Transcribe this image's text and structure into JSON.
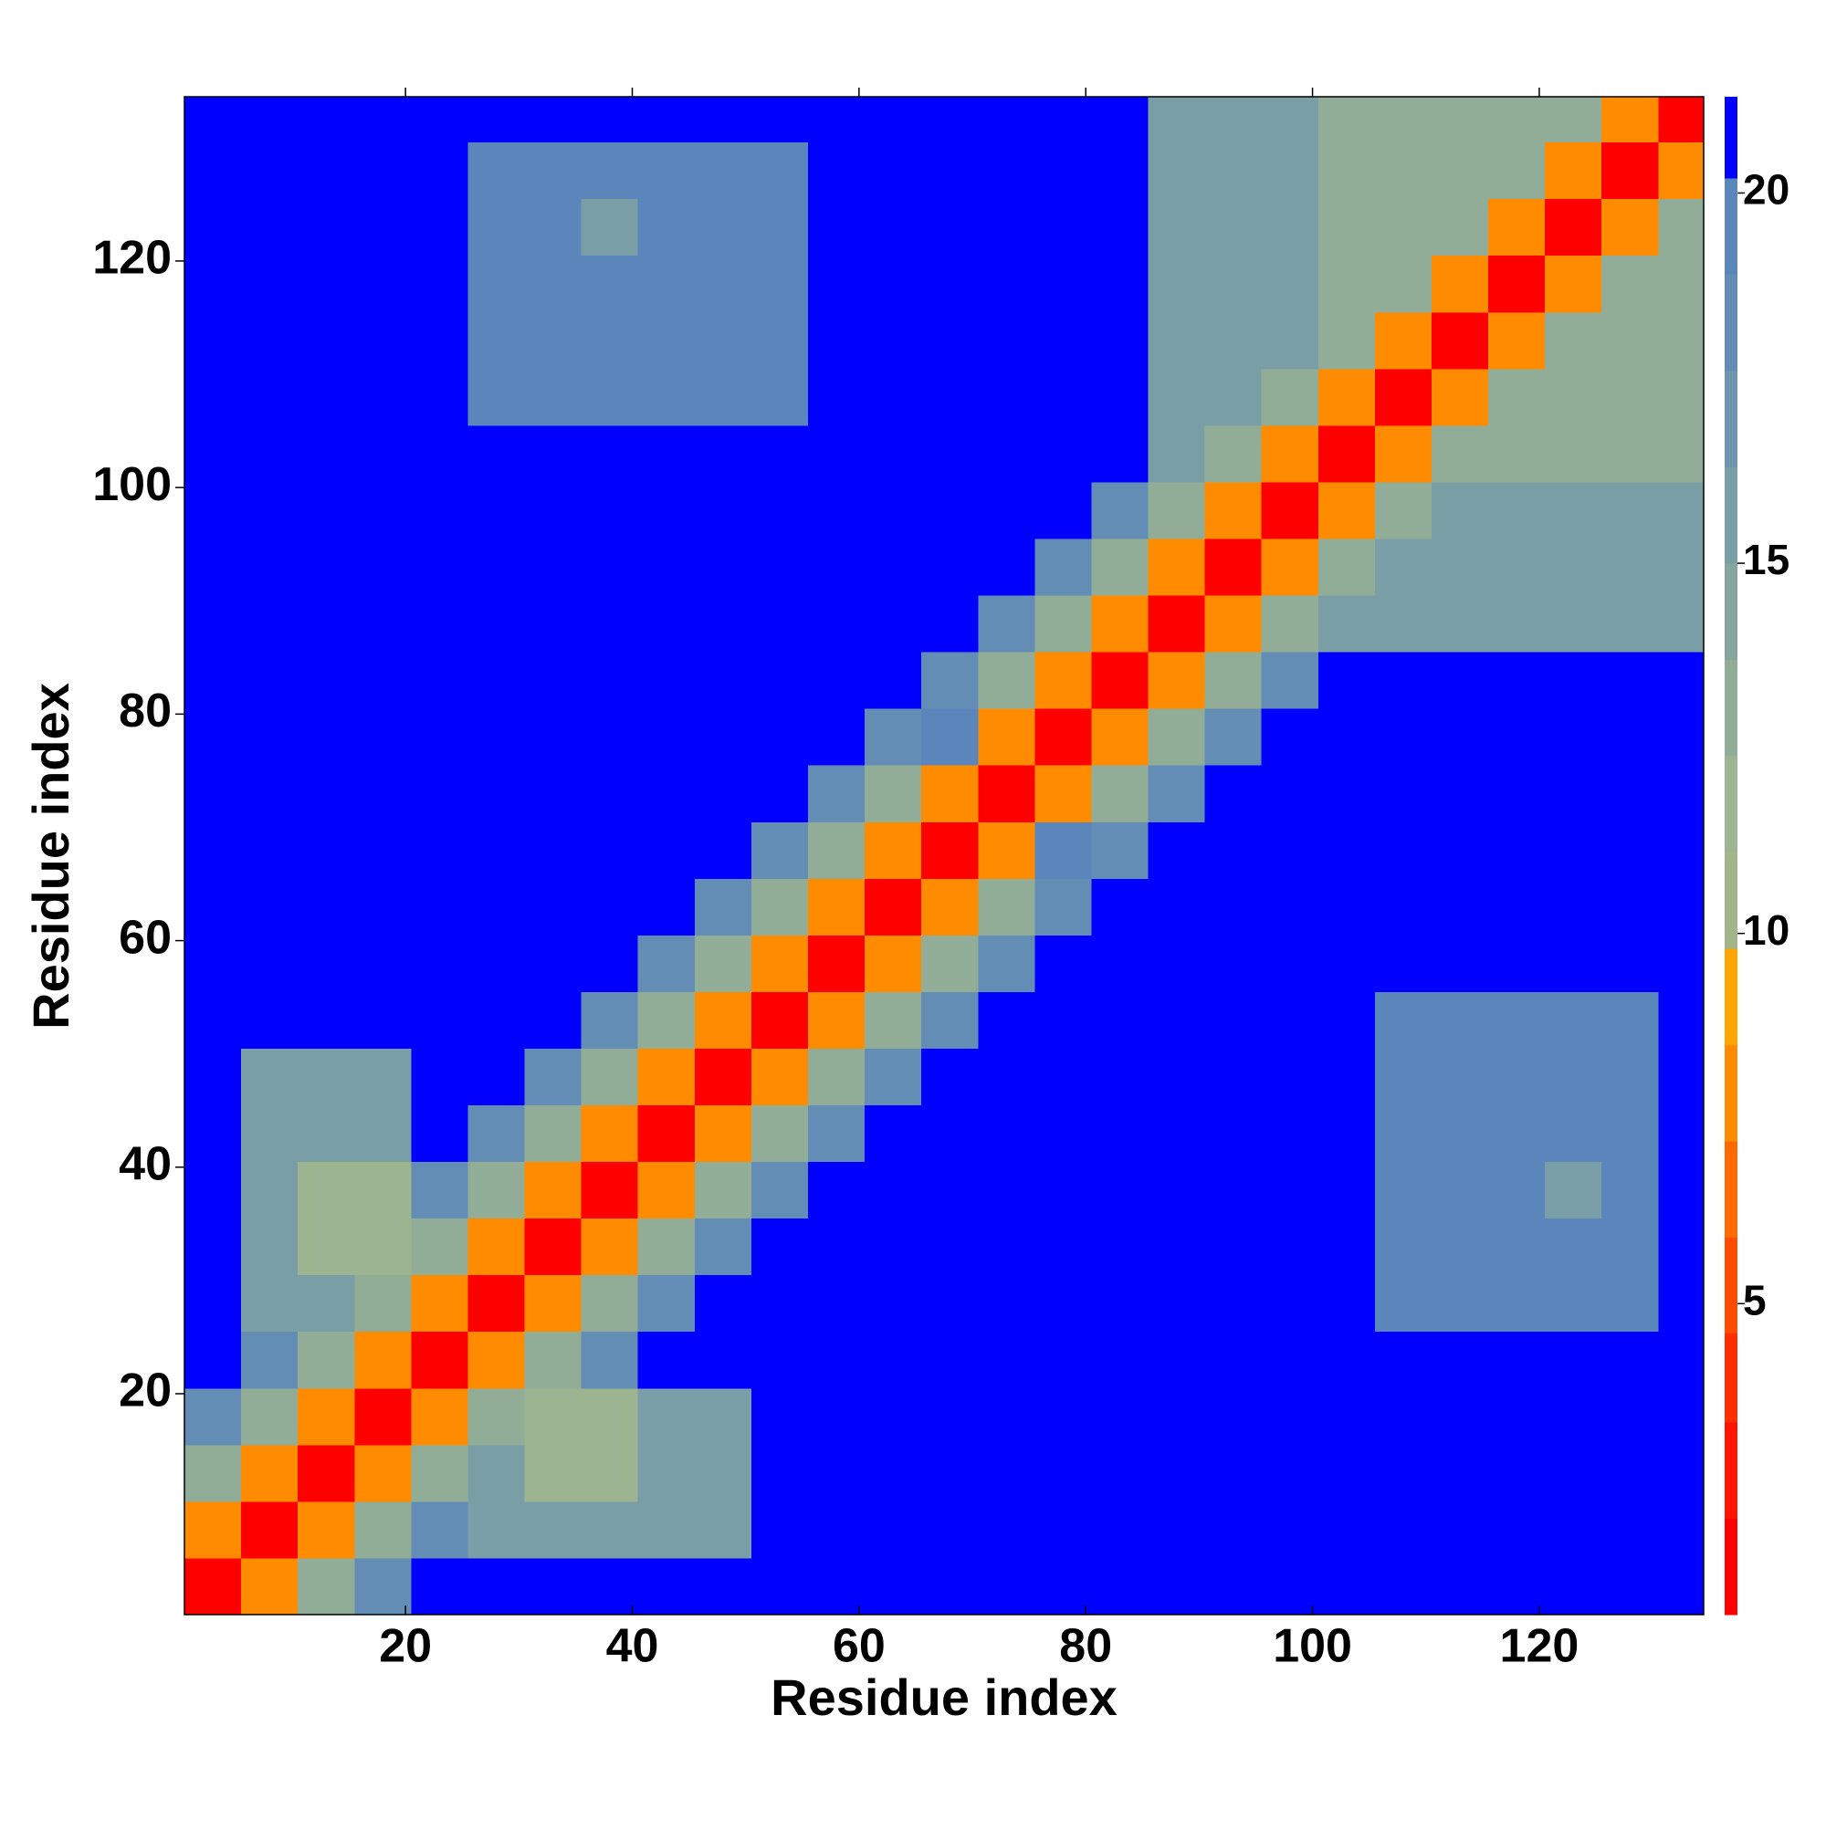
{
  "chart_data": {
    "type": "heatmap",
    "xlabel": "Residue index",
    "ylabel": "Residue index",
    "xlim": [
      0.5,
      134.5
    ],
    "ylim": [
      0.5,
      134.5
    ],
    "xticks": [
      20,
      40,
      60,
      80,
      100,
      120
    ],
    "yticks": [
      20,
      40,
      60,
      80,
      100,
      120
    ],
    "x_edges": [
      0.5,
      5.5,
      10.5,
      15.5,
      20.5,
      25.5,
      30.5,
      35.5,
      40.5,
      45.5,
      50.5,
      55.5,
      60.5,
      65.5,
      70.5,
      75.5,
      80.5,
      85.5,
      90.5,
      95.5,
      100.5,
      105.5,
      110.5,
      115.5,
      120.5,
      125.5,
      130.5,
      134.5
    ],
    "y_edges": [
      0.5,
      5.5,
      10.5,
      15.5,
      20.5,
      25.5,
      30.5,
      35.5,
      40.5,
      45.5,
      50.5,
      55.5,
      60.5,
      65.5,
      70.5,
      75.5,
      80.5,
      85.5,
      90.5,
      95.5,
      100.5,
      105.5,
      110.5,
      115.5,
      120.5,
      125.5,
      130.5,
      134.5
    ],
    "z": [
      [
        2,
        8,
        13,
        18,
        21,
        21,
        21,
        21,
        21,
        21,
        21,
        21,
        21,
        21,
        21,
        21,
        21,
        21,
        21,
        21,
        21,
        21,
        21,
        21,
        21,
        21,
        21
      ],
      [
        8,
        2,
        8,
        13,
        18,
        16,
        16,
        16,
        16,
        16,
        21,
        21,
        21,
        21,
        21,
        21,
        21,
        21,
        21,
        21,
        21,
        21,
        21,
        21,
        21,
        21,
        21
      ],
      [
        13,
        8,
        2,
        8,
        13,
        16,
        12,
        12,
        16,
        16,
        21,
        21,
        21,
        21,
        21,
        21,
        21,
        21,
        21,
        21,
        21,
        21,
        21,
        21,
        21,
        21,
        21
      ],
      [
        18,
        13,
        8,
        2,
        8,
        13,
        12,
        12,
        16,
        16,
        21,
        21,
        21,
        21,
        21,
        21,
        21,
        21,
        21,
        21,
        21,
        21,
        21,
        21,
        21,
        21,
        21
      ],
      [
        21,
        18,
        13,
        8,
        2,
        8,
        13,
        18,
        21,
        21,
        21,
        21,
        21,
        21,
        21,
        21,
        21,
        21,
        21,
        21,
        21,
        21,
        21,
        21,
        21,
        21,
        21
      ],
      [
        21,
        16,
        16,
        13,
        8,
        2,
        8,
        13,
        18,
        21,
        21,
        21,
        21,
        21,
        21,
        21,
        21,
        21,
        21,
        21,
        21,
        19,
        19,
        19,
        19,
        19,
        21
      ],
      [
        21,
        16,
        12,
        12,
        13,
        8,
        2,
        8,
        13,
        18,
        21,
        21,
        21,
        21,
        21,
        21,
        21,
        21,
        21,
        21,
        21,
        19,
        19,
        19,
        19,
        19,
        21
      ],
      [
        21,
        16,
        12,
        12,
        18,
        13,
        8,
        2,
        8,
        13,
        18,
        21,
        21,
        21,
        21,
        21,
        21,
        21,
        21,
        21,
        21,
        19,
        19,
        19,
        16,
        19,
        21
      ],
      [
        21,
        16,
        16,
        16,
        21,
        18,
        13,
        8,
        2,
        8,
        13,
        18,
        21,
        21,
        21,
        21,
        21,
        21,
        21,
        21,
        21,
        19,
        19,
        19,
        19,
        19,
        21
      ],
      [
        21,
        16,
        16,
        16,
        21,
        21,
        18,
        13,
        8,
        2,
        8,
        13,
        18,
        21,
        21,
        21,
        21,
        21,
        21,
        21,
        21,
        19,
        19,
        19,
        19,
        19,
        21
      ],
      [
        21,
        21,
        21,
        21,
        21,
        21,
        21,
        18,
        13,
        8,
        2,
        8,
        13,
        18,
        21,
        21,
        21,
        21,
        21,
        21,
        21,
        19,
        19,
        19,
        19,
        19,
        21
      ],
      [
        21,
        21,
        21,
        21,
        21,
        21,
        21,
        21,
        18,
        13,
        8,
        2,
        8,
        13,
        18,
        21,
        21,
        21,
        21,
        21,
        21,
        21,
        21,
        21,
        21,
        21,
        21
      ],
      [
        21,
        21,
        21,
        21,
        21,
        21,
        21,
        21,
        21,
        18,
        13,
        8,
        2,
        8,
        13,
        18,
        21,
        21,
        21,
        21,
        21,
        21,
        21,
        21,
        21,
        21,
        21
      ],
      [
        21,
        21,
        21,
        21,
        21,
        21,
        21,
        21,
        21,
        21,
        18,
        13,
        8,
        2,
        8,
        20,
        18,
        21,
        21,
        21,
        21,
        21,
        21,
        21,
        21,
        21,
        21
      ],
      [
        21,
        21,
        21,
        21,
        21,
        21,
        21,
        21,
        21,
        21,
        21,
        18,
        13,
        8,
        2,
        8,
        13,
        18,
        21,
        21,
        21,
        21,
        21,
        21,
        21,
        21,
        21
      ],
      [
        21,
        21,
        21,
        21,
        21,
        21,
        21,
        21,
        21,
        21,
        21,
        21,
        18,
        20,
        8,
        2,
        8,
        13,
        18,
        21,
        21,
        21,
        21,
        21,
        21,
        21,
        21
      ],
      [
        21,
        21,
        21,
        21,
        21,
        21,
        21,
        21,
        21,
        21,
        21,
        21,
        21,
        18,
        13,
        8,
        2,
        8,
        13,
        18,
        21,
        21,
        21,
        21,
        21,
        21,
        21
      ],
      [
        21,
        21,
        21,
        21,
        21,
        21,
        21,
        21,
        21,
        21,
        21,
        21,
        21,
        21,
        18,
        13,
        8,
        2,
        8,
        13,
        16,
        16,
        16,
        16,
        16,
        16,
        16
      ],
      [
        21,
        21,
        21,
        21,
        21,
        21,
        21,
        21,
        21,
        21,
        21,
        21,
        21,
        21,
        21,
        18,
        13,
        8,
        2,
        8,
        13,
        16,
        16,
        16,
        16,
        16,
        16
      ],
      [
        21,
        21,
        21,
        21,
        21,
        21,
        21,
        21,
        21,
        21,
        21,
        21,
        21,
        21,
        21,
        21,
        18,
        13,
        8,
        2,
        8,
        13,
        16,
        16,
        16,
        16,
        16
      ],
      [
        21,
        21,
        21,
        21,
        21,
        21,
        21,
        21,
        21,
        21,
        21,
        21,
        21,
        21,
        21,
        21,
        21,
        16,
        13,
        8,
        2,
        8,
        13,
        13,
        13,
        13,
        13
      ],
      [
        21,
        21,
        21,
        21,
        21,
        19,
        19,
        19,
        19,
        19,
        19,
        21,
        21,
        21,
        21,
        21,
        21,
        16,
        16,
        13,
        8,
        2,
        8,
        13,
        13,
        13,
        13
      ],
      [
        21,
        21,
        21,
        21,
        21,
        19,
        19,
        19,
        19,
        19,
        19,
        21,
        21,
        21,
        21,
        21,
        21,
        16,
        16,
        16,
        13,
        8,
        2,
        8,
        13,
        13,
        13
      ],
      [
        21,
        21,
        21,
        21,
        21,
        19,
        19,
        19,
        19,
        19,
        19,
        21,
        21,
        21,
        21,
        21,
        21,
        16,
        16,
        16,
        13,
        13,
        8,
        2,
        8,
        13,
        13
      ],
      [
        21,
        21,
        21,
        21,
        21,
        19,
        19,
        16,
        19,
        19,
        19,
        21,
        21,
        21,
        21,
        21,
        21,
        16,
        16,
        16,
        13,
        13,
        13,
        8,
        2,
        8,
        13
      ],
      [
        21,
        21,
        21,
        21,
        21,
        19,
        19,
        19,
        19,
        19,
        19,
        21,
        21,
        21,
        21,
        21,
        21,
        16,
        16,
        16,
        13,
        13,
        13,
        13,
        8,
        2,
        8
      ],
      [
        21,
        21,
        21,
        21,
        21,
        21,
        21,
        21,
        21,
        21,
        21,
        21,
        21,
        21,
        21,
        21,
        21,
        16,
        16,
        16,
        13,
        13,
        13,
        13,
        13,
        8,
        2
      ]
    ],
    "colorbar": {
      "lim": [
        0.8,
        21.3
      ],
      "ticks": [
        5,
        10,
        15,
        20
      ],
      "levels": [
        0.8,
        2.1,
        3.4,
        4.6,
        5.9,
        7.2,
        8.5,
        9.8,
        11.1,
        12.4,
        13.7,
        15,
        16.3,
        17.6,
        18.9,
        20.2,
        21.3
      ],
      "colors": [
        "#ff0000",
        "#ff1400",
        "#ff2d00",
        "#ff4a00",
        "#ff6a00",
        "#ff8c00",
        "#ffa500",
        "#a3b58a",
        "#9cb590",
        "#91ad97",
        "#86a69d",
        "#7a9ea6",
        "#6f95ae",
        "#648db5",
        "#5a86bc",
        "#0000ff"
      ]
    }
  }
}
